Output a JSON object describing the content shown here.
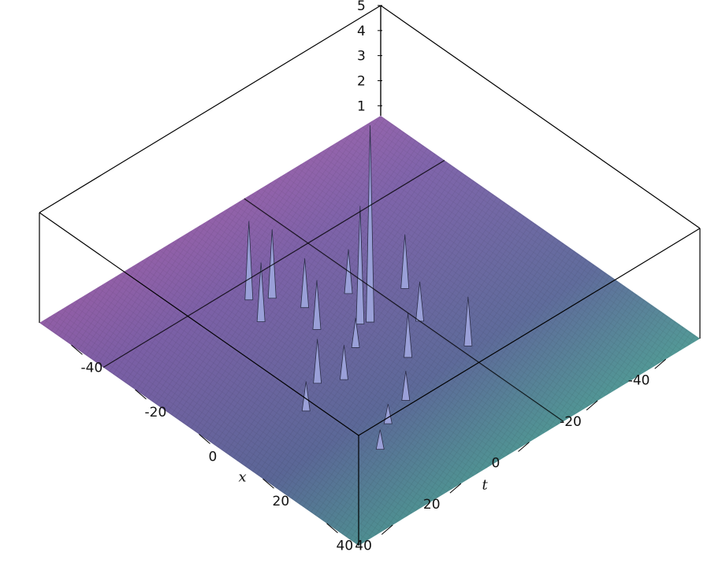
{
  "chart_data": {
    "type": "surface3d",
    "title": "",
    "axes": {
      "x": {
        "label": "x",
        "range": [
          -50,
          50
        ],
        "ticks": [
          -40,
          -20,
          0,
          20,
          40
        ],
        "tick_labels": [
          "-40",
          "-20",
          "0",
          "20",
          "40"
        ]
      },
      "t": {
        "label": "t",
        "range": [
          -50,
          50
        ],
        "ticks": [
          -40,
          -20,
          0,
          20,
          40
        ],
        "tick_labels": [
          "-40",
          "-20",
          "0",
          "20",
          "40"
        ]
      },
      "z": {
        "label": "",
        "range": [
          0.6,
          5
        ],
        "ticks": [
          1,
          2,
          3,
          4,
          5
        ],
        "tick_labels": [
          "1",
          "2",
          "3",
          "4",
          "5"
        ]
      }
    },
    "baseline": 1,
    "peaks": [
      {
        "x": -2,
        "t": -2,
        "height": 5.0
      },
      {
        "x": -3,
        "t": 0,
        "height": 3.4
      },
      {
        "x": -22,
        "t": 8,
        "height": 2.4
      },
      {
        "x": -25,
        "t": 12,
        "height": 2.6
      },
      {
        "x": -18,
        "t": 15,
        "height": 2.2
      },
      {
        "x": -15,
        "t": 5,
        "height": 2.0
      },
      {
        "x": -12,
        "t": -5,
        "height": 1.9
      },
      {
        "x": -5,
        "t": -15,
        "height": 2.1
      },
      {
        "x": 5,
        "t": -10,
        "height": 1.8
      },
      {
        "x": -8,
        "t": 8,
        "height": 2.0
      },
      {
        "x": 2,
        "t": 6,
        "height": 1.6
      },
      {
        "x": 5,
        "t": 20,
        "height": 1.9
      },
      {
        "x": 8,
        "t": 15,
        "height": 1.7
      },
      {
        "x": 12,
        "t": 0,
        "height": 1.9
      },
      {
        "x": 18,
        "t": -12,
        "height": 2.0
      },
      {
        "x": 22,
        "t": 10,
        "height": 1.6
      },
      {
        "x": 25,
        "t": 18,
        "height": 1.4
      },
      {
        "x": 30,
        "t": 25,
        "height": 1.4
      },
      {
        "x": 10,
        "t": 28,
        "height": 1.6
      }
    ],
    "colormap": [
      "#c25aa4",
      "#7a5fa8",
      "#5e6a9e",
      "#4aa898",
      "#c8c6a8"
    ],
    "grid": false
  }
}
